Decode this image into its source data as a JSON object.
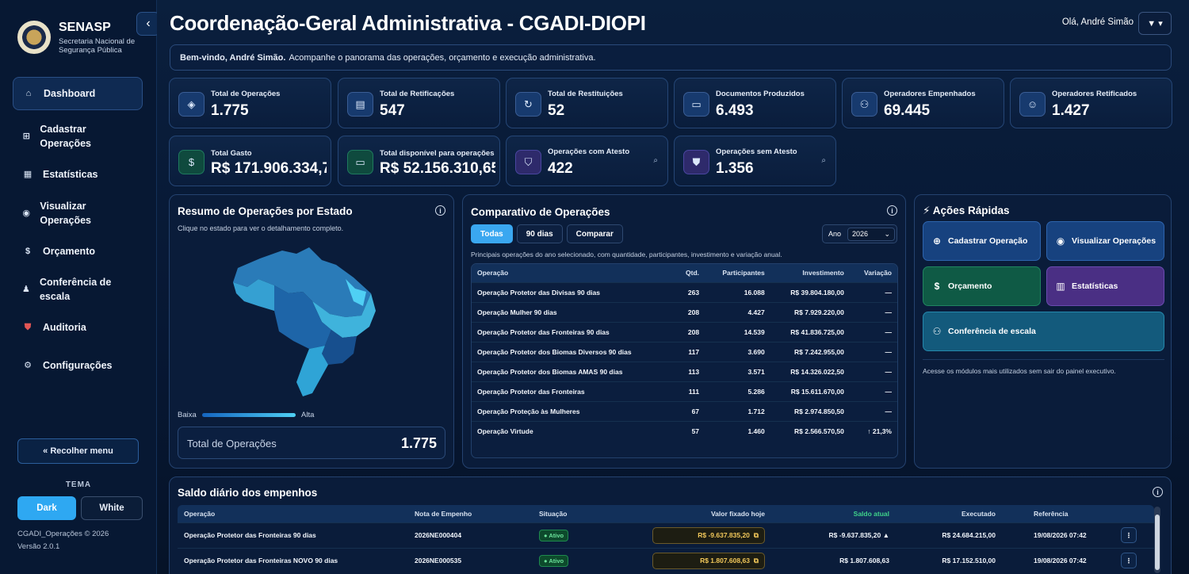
{
  "sidebar": {
    "brand_title": "SENASP",
    "brand_sub": "Secretaria Nacional de Segurança Pública",
    "items": [
      {
        "label": "Dashboard",
        "icon": "home-icon"
      },
      {
        "label": "Cadastrar Operações",
        "icon": "grid-icon"
      },
      {
        "label": "Estatísticas",
        "icon": "chart-icon"
      },
      {
        "label": "Visualizar Operações",
        "icon": "eye-icon"
      },
      {
        "label": "Orçamento",
        "icon": "dollar-icon"
      },
      {
        "label": "Conferência de escala",
        "icon": "person-icon"
      },
      {
        "label": "Auditoria",
        "icon": "shield-icon"
      },
      {
        "label": "Configurações",
        "icon": "gear-icon"
      }
    ],
    "collapse_label": "« Recolher menu",
    "tema_label": "TEMA",
    "theme_dark": "Dark",
    "theme_white": "White",
    "footer_copy": "CGADI_Operações © 2026",
    "footer_version": "Versão 2.0.1"
  },
  "header": {
    "title": "Coordenação-Geral Administrativa - CGADI-DIOPI",
    "greeting": "Olá, André Simão",
    "user_menu": "▼ ▾",
    "welcome_bold": "Bem-vindo, André Simão.",
    "welcome_text": "Acompanhe o panorama das operações, orçamento e execução administrativa."
  },
  "cards": [
    {
      "label": "Total de Operações",
      "value": "1.775",
      "icon": "layers-icon"
    },
    {
      "label": "Total de Retificações",
      "value": "547",
      "icon": "clipboard-icon"
    },
    {
      "label": "Total de Restituições",
      "value": "52",
      "icon": "refresh-icon"
    },
    {
      "label": "Documentos Produzidos",
      "value": "6.493",
      "icon": "document-icon"
    },
    {
      "label": "Operadores Empenhados",
      "value": "69.445",
      "icon": "users-icon"
    },
    {
      "label": "Operadores Retificados",
      "value": "1.427",
      "icon": "user-check-icon"
    },
    {
      "label": "Total Gasto",
      "value": "R$ 171.906.334,7",
      "icon": "money-icon"
    },
    {
      "label": "Total disponível para operações",
      "value": "R$ 52.156.310,65",
      "icon": "wallet-icon"
    },
    {
      "label": "Operações com Atesto",
      "value": "422",
      "icon": "shield-check-icon"
    },
    {
      "label": "Operações sem Atesto",
      "value": "1.356",
      "icon": "shield-x-icon"
    }
  ],
  "map_panel": {
    "title": "Resumo de Operações por Estado",
    "subtitle": "Clique no estado para ver o detalhamento completo.",
    "legend_low": "Baixa",
    "legend_high": "Alta",
    "total_label": "Total de Operações",
    "total_value": "1.775"
  },
  "comparativo": {
    "title": "Comparativo de Operações",
    "tabs": [
      "Todas",
      "90 dias",
      "Comparar"
    ],
    "year_label": "Ano",
    "year_value": "2026",
    "subtitle": "Principais operações do ano selecionado, com quantidade, participantes, investimento e variação anual.",
    "columns": [
      "Operação",
      "Qtd.",
      "Participantes",
      "Investimento",
      "Variação"
    ],
    "rows": [
      [
        "Operação Protetor das Divisas 90 dias",
        "263",
        "16.088",
        "R$ 39.804.180,00",
        "—"
      ],
      [
        "Operação Mulher 90 dias",
        "208",
        "4.427",
        "R$ 7.929.220,00",
        "—"
      ],
      [
        "Operação Protetor das Fronteiras 90 dias",
        "208",
        "14.539",
        "R$ 41.836.725,00",
        "—"
      ],
      [
        "Operação Protetor dos Biomas Diversos 90 dias",
        "117",
        "3.690",
        "R$ 7.242.955,00",
        "—"
      ],
      [
        "Operação Protetor dos Biomas AMAS 90 dias",
        "113",
        "3.571",
        "R$ 14.326.022,50",
        "—"
      ],
      [
        "Operação Protetor das Fronteiras",
        "111",
        "5.286",
        "R$ 15.611.670,00",
        "—"
      ],
      [
        "Operação Proteção às Mulheres",
        "67",
        "1.712",
        "R$ 2.974.850,50",
        "—"
      ],
      [
        "Operação Virtude",
        "57",
        "1.460",
        "R$ 2.566.570,50",
        "↑ 21,3%"
      ]
    ]
  },
  "acoes": {
    "title": "⚡ Ações Rápidas",
    "buttons": [
      {
        "label": "Cadastrar Operação",
        "icon": "plus-icon"
      },
      {
        "label": "Visualizar Operações",
        "icon": "eye-icon"
      },
      {
        "label": "Orçamento",
        "icon": "dollar-icon"
      },
      {
        "label": "Estatísticas",
        "icon": "bar-chart-icon"
      },
      {
        "label": "Conferência de escala",
        "icon": "users-icon"
      }
    ],
    "note": "Acesse os módulos mais utilizados sem sair do painel executivo."
  },
  "saldo": {
    "title": "Saldo diário dos empenhos",
    "columns": [
      "Operação",
      "Nota de Empenho",
      "Situação",
      "Valor fixado hoje",
      "Saldo atual",
      "Executado",
      "Referência"
    ],
    "rows": [
      {
        "op": "Operação Protetor das Fronteiras 90 dias",
        "nota": "2026NE000404",
        "sit": "● Ativo",
        "fixado": "R$ -9.637.835,20",
        "saldo": "R$ -9.637.835,20 ▲",
        "exec": "R$ 24.684.215,00",
        "ref": "19/08/2026 07:42"
      },
      {
        "op": "Operação Protetor das Fronteiras NOVO 90 dias",
        "nota": "2026NE000535",
        "sit": "● Ativo",
        "fixado": "R$ 1.807.608,63",
        "saldo": "R$ 1.807.608,63",
        "exec": "R$ 17.152.510,00",
        "ref": "19/08/2026 07:42"
      }
    ]
  },
  "colors": {
    "accent": "#2ea8f2",
    "positive": "#3fd28a",
    "gold": "#f2c85a"
  }
}
